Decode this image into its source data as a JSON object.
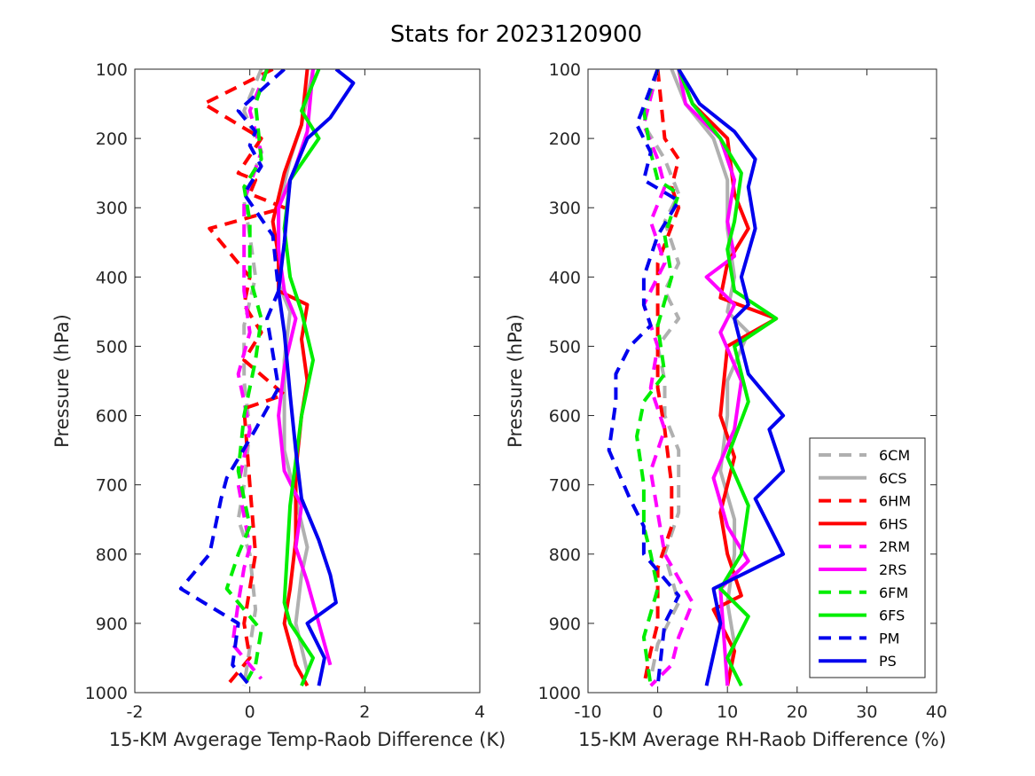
{
  "figure": {
    "title": "Stats for 2023120900"
  },
  "legend": {
    "placement": "bottom-right of right panel",
    "entries": [
      {
        "label": "6CM",
        "color": "#b0b0b0",
        "dash": true
      },
      {
        "label": "6CS",
        "color": "#b0b0b0",
        "dash": false
      },
      {
        "label": "6HM",
        "color": "#ff0000",
        "dash": true
      },
      {
        "label": "6HS",
        "color": "#ff0000",
        "dash": false
      },
      {
        "label": "2RM",
        "color": "#ff00ff",
        "dash": true
      },
      {
        "label": "2RS",
        "color": "#ff00ff",
        "dash": false
      },
      {
        "label": "6FM",
        "color": "#00ee00",
        "dash": true
      },
      {
        "label": "6FS",
        "color": "#00ee00",
        "dash": false
      },
      {
        "label": "PM",
        "color": "#0000ee",
        "dash": true
      },
      {
        "label": "PS",
        "color": "#0000ee",
        "dash": false
      }
    ]
  },
  "chart_data": [
    {
      "type": "line",
      "xlabel": "15-KM Avgerage Temp-Raob Difference (K)",
      "ylabel": "Pressure (hPa)",
      "xlim": [
        -2,
        4
      ],
      "ylim": [
        100,
        1000
      ],
      "y_reversed": true,
      "xticks": [
        "-2",
        "0",
        "2",
        "4"
      ],
      "yticks": [
        "100",
        "200",
        "300",
        "400",
        "500",
        "600",
        "700",
        "800",
        "900",
        "1000"
      ],
      "series": [
        {
          "name": "6CM",
          "x": [
            0.2,
            -0.1,
            0.2,
            -0.1,
            0.0,
            0.1,
            -0.1,
            -0.1,
            0.0,
            -0.1,
            -0.2,
            0.0,
            0.1,
            -0.1
          ],
          "y": [
            100,
            160,
            220,
            290,
            340,
            400,
            470,
            550,
            620,
            700,
            750,
            800,
            880,
            990
          ]
        },
        {
          "name": "6CS",
          "x": [
            1.1,
            0.9,
            0.7,
            0.5,
            0.5,
            0.5,
            0.7,
            0.6,
            0.6,
            0.6,
            0.8,
            1.0,
            0.9,
            0.8,
            1.0
          ],
          "y": [
            100,
            180,
            230,
            300,
            360,
            410,
            450,
            520,
            600,
            650,
            720,
            790,
            830,
            900,
            970
          ]
        },
        {
          "name": "6HM",
          "x": [
            0.4,
            -0.8,
            0.2,
            -0.2,
            0.1,
            0.0,
            0.6,
            -0.7,
            0.0,
            -0.1,
            0.2,
            -0.1,
            0.6,
            -0.1,
            0.0,
            0.1,
            -0.1,
            0.0,
            -0.4
          ],
          "y": [
            100,
            150,
            200,
            250,
            260,
            280,
            300,
            330,
            400,
            440,
            480,
            520,
            570,
            590,
            700,
            800,
            900,
            950,
            990
          ]
        },
        {
          "name": "6HS",
          "x": [
            1.0,
            0.9,
            0.6,
            0.4,
            0.5,
            0.5,
            1.0,
            0.9,
            1.0,
            0.9,
            0.8,
            0.8,
            0.7,
            0.6,
            0.8,
            1.0
          ],
          "y": [
            100,
            180,
            250,
            320,
            370,
            420,
            440,
            490,
            550,
            600,
            680,
            780,
            850,
            900,
            960,
            990
          ]
        },
        {
          "name": "2RM",
          "x": [
            0.3,
            0.0,
            0.2,
            -0.1,
            -0.1,
            -0.1,
            0.0,
            -0.2,
            0.0,
            -0.2,
            0.0,
            -0.1,
            -0.2,
            -0.3,
            0.2
          ],
          "y": [
            100,
            160,
            220,
            290,
            350,
            420,
            480,
            540,
            620,
            700,
            790,
            820,
            870,
            930,
            980
          ]
        },
        {
          "name": "2RS",
          "x": [
            1.1,
            1.0,
            0.8,
            0.5,
            0.5,
            0.6,
            0.8,
            0.6,
            0.5,
            0.6,
            0.9,
            0.8,
            1.0,
            1.2,
            1.4
          ],
          "y": [
            100,
            190,
            240,
            300,
            360,
            420,
            460,
            530,
            600,
            680,
            730,
            790,
            840,
            900,
            960
          ]
        },
        {
          "name": "6FM",
          "x": [
            0.3,
            0.1,
            0.2,
            -0.1,
            0.0,
            0.0,
            0.2,
            0.1,
            -0.1,
            -0.2,
            0.0,
            -0.2,
            -0.4,
            0.2,
            0.1,
            -0.1
          ],
          "y": [
            100,
            150,
            230,
            270,
            320,
            400,
            460,
            520,
            600,
            680,
            760,
            800,
            850,
            910,
            960,
            990
          ]
        },
        {
          "name": "6FS",
          "x": [
            1.2,
            0.9,
            1.2,
            0.7,
            0.6,
            0.7,
            0.9,
            1.1,
            0.9,
            0.7,
            0.6,
            0.7,
            1.1,
            0.9
          ],
          "y": [
            100,
            160,
            200,
            260,
            330,
            400,
            450,
            520,
            600,
            730,
            870,
            900,
            950,
            990
          ]
        },
        {
          "name": "PM",
          "x": [
            0.6,
            -0.2,
            0.1,
            0.0,
            0.2,
            -0.1,
            0.4,
            0.5,
            0.3,
            0.5,
            0.1,
            -0.4,
            -0.5,
            -0.7,
            -1.2,
            -0.8,
            -0.2,
            -0.3,
            0.0
          ],
          "y": [
            100,
            160,
            190,
            210,
            240,
            280,
            340,
            420,
            460,
            560,
            620,
            690,
            720,
            800,
            850,
            870,
            900,
            960,
            990
          ]
        },
        {
          "name": "PS",
          "x": [
            1.5,
            1.8,
            1.4,
            1.0,
            0.7,
            0.6,
            0.5,
            0.6,
            0.7,
            0.8,
            0.9,
            1.2,
            1.4,
            1.5,
            1.0,
            1.3,
            1.2
          ],
          "y": [
            100,
            120,
            170,
            200,
            260,
            350,
            420,
            480,
            570,
            650,
            720,
            780,
            830,
            870,
            900,
            950,
            990
          ]
        }
      ]
    },
    {
      "type": "line",
      "xlabel": "15-KM Average RH-Raob Difference (%)",
      "ylabel": "Pressure (hPa)",
      "xlim": [
        -10,
        40
      ],
      "ylim": [
        100,
        1000
      ],
      "y_reversed": true,
      "xticks": [
        "-10",
        "0",
        "10",
        "20",
        "30",
        "40"
      ],
      "yticks": [
        "100",
        "200",
        "300",
        "400",
        "500",
        "600",
        "700",
        "800",
        "900",
        "1000"
      ],
      "series": [
        {
          "name": "6CM",
          "x": [
            0,
            -2,
            1,
            3,
            1,
            3,
            1,
            3,
            0,
            1,
            1,
            3,
            3,
            1,
            3,
            0,
            -1
          ],
          "y": [
            100,
            180,
            230,
            280,
            320,
            380,
            420,
            460,
            500,
            550,
            600,
            650,
            740,
            800,
            870,
            930,
            980
          ]
        },
        {
          "name": "6CS",
          "x": [
            2,
            4,
            8,
            10,
            10,
            11,
            10,
            13,
            10,
            10,
            9,
            11,
            11,
            10,
            11,
            10
          ],
          "y": [
            100,
            150,
            200,
            260,
            330,
            400,
            450,
            480,
            550,
            600,
            680,
            750,
            800,
            870,
            930,
            990
          ]
        },
        {
          "name": "6HM",
          "x": [
            0,
            1,
            3,
            2,
            3,
            0,
            0,
            0,
            0,
            0,
            1,
            2,
            2,
            0,
            0,
            -1,
            -2
          ],
          "y": [
            100,
            200,
            230,
            270,
            300,
            380,
            420,
            450,
            500,
            560,
            620,
            700,
            760,
            820,
            900,
            940,
            990
          ]
        },
        {
          "name": "6HS",
          "x": [
            3,
            5,
            10,
            11,
            13,
            10,
            9,
            17,
            10,
            9,
            11,
            9,
            10,
            12,
            8,
            11,
            10
          ],
          "y": [
            100,
            150,
            200,
            280,
            330,
            380,
            430,
            460,
            500,
            600,
            660,
            740,
            800,
            860,
            880,
            940,
            990
          ]
        },
        {
          "name": "2RM",
          "x": [
            0,
            -2,
            0,
            1,
            -1,
            1,
            -2,
            0,
            -1,
            1,
            -1,
            0,
            1,
            5,
            3,
            2,
            -1
          ],
          "y": [
            100,
            180,
            230,
            270,
            320,
            380,
            440,
            500,
            560,
            620,
            680,
            740,
            800,
            870,
            920,
            960,
            990
          ]
        },
        {
          "name": "2RS",
          "x": [
            3,
            4,
            9,
            11,
            10,
            11,
            7,
            11,
            9,
            12,
            11,
            8,
            10,
            13,
            9,
            10
          ],
          "y": [
            100,
            150,
            200,
            260,
            320,
            370,
            400,
            440,
            480,
            550,
            620,
            690,
            760,
            810,
            850,
            990
          ]
        },
        {
          "name": "6FM",
          "x": [
            0,
            -2,
            -1,
            0,
            3,
            1,
            2,
            0,
            1,
            -2,
            -3,
            -2,
            -2,
            -1,
            0,
            -2,
            -1
          ],
          "y": [
            100,
            160,
            220,
            260,
            280,
            340,
            400,
            470,
            540,
            580,
            630,
            700,
            760,
            800,
            850,
            920,
            990
          ]
        },
        {
          "name": "6FS",
          "x": [
            3,
            5,
            9,
            12,
            11,
            10,
            11,
            17,
            11,
            13,
            10,
            13,
            12,
            9,
            13,
            10,
            12
          ],
          "y": [
            100,
            150,
            200,
            250,
            320,
            360,
            420,
            460,
            500,
            580,
            660,
            730,
            800,
            850,
            890,
            950,
            990
          ]
        },
        {
          "name": "PM",
          "x": [
            0,
            -3,
            -1,
            -2,
            3,
            0,
            -2,
            -2,
            -1,
            -4,
            -6,
            -6,
            -7,
            -4,
            -2,
            -2,
            3,
            1,
            0
          ],
          "y": [
            100,
            180,
            220,
            260,
            290,
            340,
            400,
            440,
            470,
            500,
            540,
            580,
            650,
            720,
            760,
            800,
            860,
            900,
            990
          ]
        },
        {
          "name": "PS",
          "x": [
            3,
            6,
            11,
            14,
            13,
            14,
            12,
            13,
            11,
            13,
            18,
            16,
            18,
            14,
            16,
            18,
            8,
            9,
            7
          ],
          "y": [
            100,
            150,
            190,
            230,
            270,
            330,
            400,
            440,
            460,
            540,
            600,
            620,
            680,
            720,
            760,
            800,
            850,
            900,
            990
          ]
        }
      ]
    }
  ]
}
